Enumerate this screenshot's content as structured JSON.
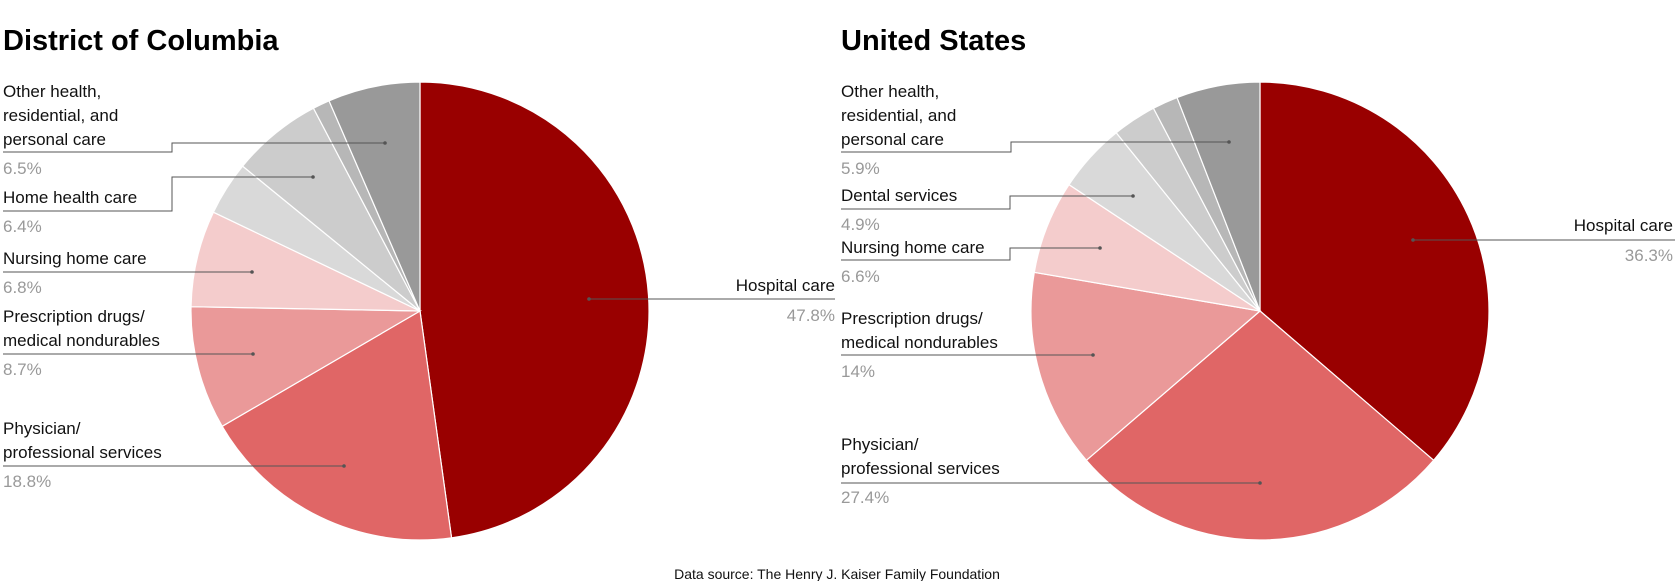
{
  "chart_data": [
    {
      "type": "pie",
      "title": "District of Columbia",
      "slices": [
        {
          "label": "Hospital care",
          "value": 47.8,
          "display": "47.8%",
          "color": "#990000"
        },
        {
          "label": "Physician/ professional services",
          "value": 18.8,
          "display": "18.8%",
          "color": "#e06666"
        },
        {
          "label": "Prescription drugs/ medical nondurables",
          "value": 8.7,
          "display": "8.7%",
          "color": "#ea9999"
        },
        {
          "label": "Nursing home care",
          "value": 6.8,
          "display": "6.8%",
          "color": "#f4cccc"
        },
        {
          "label": "",
          "value": 3.8,
          "display": "",
          "color": "#d9d9d9"
        },
        {
          "label": "Home health care",
          "value": 6.4,
          "display": "6.4%",
          "color": "#cccccc"
        },
        {
          "label": "",
          "value": 1.2,
          "display": "",
          "color": "#b7b7b7"
        },
        {
          "label": "Other health, residential, and personal care",
          "value": 6.5,
          "display": "6.5%",
          "color": "#999999"
        }
      ]
    },
    {
      "type": "pie",
      "title": "United States",
      "slices": [
        {
          "label": "Hospital care",
          "value": 36.3,
          "display": "36.3%",
          "color": "#990000"
        },
        {
          "label": "Physician/ professional services",
          "value": 27.4,
          "display": "27.4%",
          "color": "#e06666"
        },
        {
          "label": "Prescription drugs/ medical nondurables",
          "value": 14,
          "display": "14%",
          "color": "#ea9999"
        },
        {
          "label": "Nursing home care",
          "value": 6.6,
          "display": "6.6%",
          "color": "#f4cccc"
        },
        {
          "label": "Dental services",
          "value": 4.9,
          "display": "4.9%",
          "color": "#d9d9d9"
        },
        {
          "label": "",
          "value": 3.1,
          "display": "",
          "color": "#cccccc"
        },
        {
          "label": "",
          "value": 1.8,
          "display": "",
          "color": "#b7b7b7"
        },
        {
          "label": "Other health, residential, and personal care",
          "value": 5.9,
          "display": "5.9%",
          "color": "#999999"
        }
      ]
    }
  ],
  "labels": {
    "dc": {
      "title": "District of Columbia",
      "hospital": {
        "line1": "Hospital care",
        "pct": "47.8%"
      },
      "physician": {
        "line1": "Physician/",
        "line2": "professional services",
        "pct": "18.8%"
      },
      "rx": {
        "line1": "Prescription drugs/",
        "line2": "medical nondurables",
        "pct": "8.7%"
      },
      "nursing": {
        "line1": "Nursing home care",
        "pct": "6.8%"
      },
      "home": {
        "line1": "Home health care",
        "pct": "6.4%"
      },
      "other": {
        "line1": "Other health,",
        "line2": "residential, and",
        "line3": "personal care",
        "pct": "6.5%"
      }
    },
    "us": {
      "title": "United States",
      "hospital": {
        "line1": "Hospital care",
        "pct": "36.3%"
      },
      "physician": {
        "line1": "Physician/",
        "line2": "professional services",
        "pct": "27.4%"
      },
      "rx": {
        "line1": "Prescription drugs/",
        "line2": "medical nondurables",
        "pct": "14%"
      },
      "nursing": {
        "line1": "Nursing home care",
        "pct": "6.6%"
      },
      "dental": {
        "line1": "Dental services",
        "pct": "4.9%"
      },
      "other": {
        "line1": "Other health,",
        "line2": "residential, and",
        "line3": "personal care",
        "pct": "5.9%"
      }
    }
  },
  "footer": {
    "source": "Data source: The Henry J. Kaiser Family Foundation"
  }
}
